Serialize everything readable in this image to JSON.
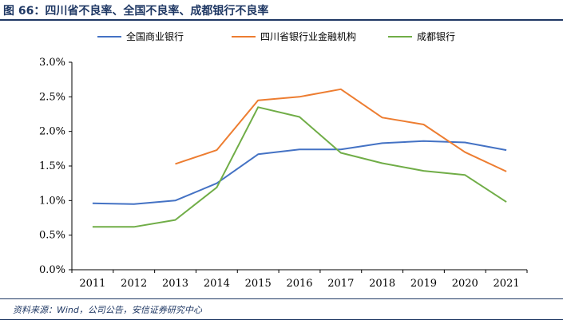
{
  "header": {
    "title": "图 66：四川省不良率、全国不良率、成都银行不良率"
  },
  "footer": {
    "source": "资料来源：Wind，公司公告，安信证券研究中心"
  },
  "chart_data": {
    "type": "line",
    "x": [
      "2011",
      "2012",
      "2013",
      "2014",
      "2015",
      "2016",
      "2017",
      "2018",
      "2019",
      "2020",
      "2021"
    ],
    "ylim": [
      0,
      3.0
    ],
    "yticks": [
      "0.0%",
      "0.5%",
      "1.0%",
      "1.5%",
      "2.0%",
      "2.5%",
      "3.0%"
    ],
    "grid": false,
    "legend": "top",
    "series": [
      {
        "name": "全国商业银行",
        "color": "#4472c4",
        "values": [
          0.96,
          0.95,
          1.0,
          1.25,
          1.67,
          1.74,
          1.74,
          1.83,
          1.86,
          1.84,
          1.73
        ]
      },
      {
        "name": "四川省银行业金融机构",
        "color": "#ed7d31",
        "values": [
          null,
          null,
          1.53,
          1.73,
          2.45,
          2.5,
          2.61,
          2.2,
          2.1,
          1.7,
          1.42
        ]
      },
      {
        "name": "成都银行",
        "color": "#70ad47",
        "values": [
          0.62,
          0.62,
          0.72,
          1.19,
          2.35,
          2.21,
          1.69,
          1.54,
          1.43,
          1.37,
          0.98
        ]
      }
    ]
  }
}
